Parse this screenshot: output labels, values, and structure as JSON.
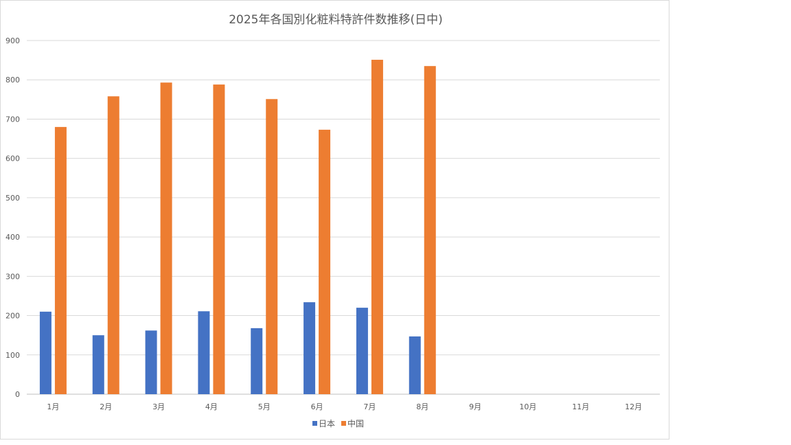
{
  "chart_data": {
    "type": "bar",
    "title": "2025年各国別化粧料特許件数推移(日中)",
    "xlabel": "",
    "ylabel": "",
    "categories": [
      "1月",
      "2月",
      "3月",
      "4月",
      "5月",
      "6月",
      "7月",
      "8月",
      "9月",
      "10月",
      "11月",
      "12月"
    ],
    "series": [
      {
        "name": "日本",
        "color": "#4472c4",
        "values": [
          210,
          150,
          162,
          211,
          168,
          234,
          220,
          147,
          null,
          null,
          null,
          null
        ]
      },
      {
        "name": "中国",
        "color": "#ed7d31",
        "values": [
          680,
          758,
          793,
          788,
          751,
          673,
          851,
          835,
          null,
          null,
          null,
          null
        ]
      }
    ],
    "ylim": [
      0,
      900
    ],
    "yticks": [
      0,
      100,
      200,
      300,
      400,
      500,
      600,
      700,
      800,
      900
    ],
    "grid": true,
    "legend_position": "bottom"
  }
}
